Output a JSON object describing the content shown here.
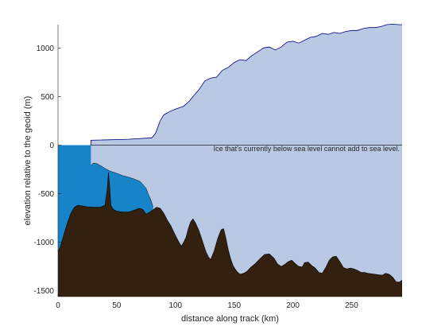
{
  "chart_data": {
    "type": "area",
    "xlabel": "distance along track (km)",
    "ylabel": "elevation relative to the geoid (m)",
    "xlim": [
      0,
      293
    ],
    "ylim": [
      -1560,
      1240
    ],
    "x_ticks": [
      0,
      50,
      100,
      150,
      200,
      250
    ],
    "y_ticks": [
      -1500,
      -1000,
      -500,
      0,
      500,
      1000
    ],
    "grid": false,
    "annotation": {
      "text": "Ice that's currently below sea level cannot add to sea level.",
      "x": 293,
      "y": -30
    },
    "colors": {
      "ice": "#b9c8e3",
      "ice_below_sea_level": "#1784c9",
      "bedrock": "#33200e",
      "sea_level_line": "#000080",
      "outline": "#000000"
    },
    "series": [
      {
        "role": "ice_surface",
        "x": [
          28,
          28,
          60,
          80,
          83,
          87,
          90,
          95,
          100,
          107,
          112,
          115,
          120,
          125,
          130,
          135,
          140,
          145,
          150,
          155,
          160,
          165,
          170,
          175,
          180,
          185,
          190,
          195,
          200,
          205,
          210,
          215,
          220,
          225,
          230,
          235,
          240,
          245,
          250,
          255,
          260,
          265,
          270,
          275,
          280,
          285,
          290,
          293
        ],
        "y": [
          0,
          50,
          60,
          75,
          120,
          250,
          310,
          345,
          370,
          400,
          455,
          500,
          570,
          660,
          690,
          700,
          770,
          800,
          850,
          880,
          870,
          920,
          960,
          1000,
          1010,
          980,
          1010,
          1060,
          1070,
          1050,
          1080,
          1110,
          1120,
          1150,
          1140,
          1160,
          1150,
          1170,
          1180,
          1180,
          1200,
          1210,
          1210,
          1220,
          1240,
          1245,
          1240,
          1240
        ]
      },
      {
        "role": "ice_base",
        "x": [
          28,
          30,
          33,
          36,
          40,
          43,
          46,
          50,
          55,
          60,
          65,
          70,
          75,
          77,
          79,
          80,
          81
        ],
        "y": [
          -210,
          -185,
          -190,
          -210,
          -240,
          -260,
          -275,
          -290,
          -315,
          -330,
          -350,
          -375,
          -445,
          -510,
          -560,
          -600,
          -640
        ]
      },
      {
        "role": "bed",
        "x": [
          0,
          2,
          5,
          8,
          11,
          14,
          17,
          20,
          25,
          30,
          36,
          40,
          42,
          43,
          44,
          45,
          47,
          50,
          55,
          60,
          65,
          69,
          72,
          75,
          78,
          81,
          84,
          87,
          90,
          93,
          96,
          100,
          103,
          105,
          107,
          109,
          111,
          113,
          115,
          117,
          120,
          123,
          126,
          128,
          130,
          133,
          136,
          139,
          141,
          143,
          145,
          147,
          149,
          151,
          153,
          155,
          158,
          161,
          164,
          168,
          172,
          176,
          180,
          184,
          187,
          190,
          193,
          196,
          199,
          202,
          205,
          208,
          210,
          213,
          216,
          219,
          222,
          225,
          228,
          231,
          234,
          237,
          240,
          243,
          246,
          249,
          252,
          255,
          258,
          261,
          264,
          267,
          270,
          273,
          276,
          279,
          282,
          285,
          288,
          291,
          293
        ],
        "y": [
          -1100,
          -1040,
          -920,
          -800,
          -700,
          -640,
          -620,
          -625,
          -635,
          -640,
          -640,
          -620,
          -440,
          -280,
          -420,
          -620,
          -660,
          -680,
          -690,
          -690,
          -670,
          -650,
          -660,
          -710,
          -690,
          -665,
          -640,
          -650,
          -700,
          -770,
          -830,
          -930,
          -1000,
          -1040,
          -1000,
          -950,
          -860,
          -790,
          -760,
          -800,
          -880,
          -990,
          -1100,
          -1150,
          -1180,
          -1090,
          -960,
          -870,
          -860,
          -960,
          -1080,
          -1170,
          -1240,
          -1280,
          -1310,
          -1330,
          -1320,
          -1300,
          -1260,
          -1220,
          -1170,
          -1125,
          -1120,
          -1165,
          -1225,
          -1250,
          -1230,
          -1200,
          -1185,
          -1220,
          -1250,
          -1255,
          -1210,
          -1205,
          -1240,
          -1265,
          -1310,
          -1320,
          -1260,
          -1185,
          -1150,
          -1145,
          -1200,
          -1260,
          -1275,
          -1265,
          -1275,
          -1290,
          -1310,
          -1310,
          -1320,
          -1325,
          -1330,
          -1335,
          -1340,
          -1320,
          -1330,
          -1360,
          -1410,
          -1410,
          -1390
        ]
      }
    ]
  }
}
